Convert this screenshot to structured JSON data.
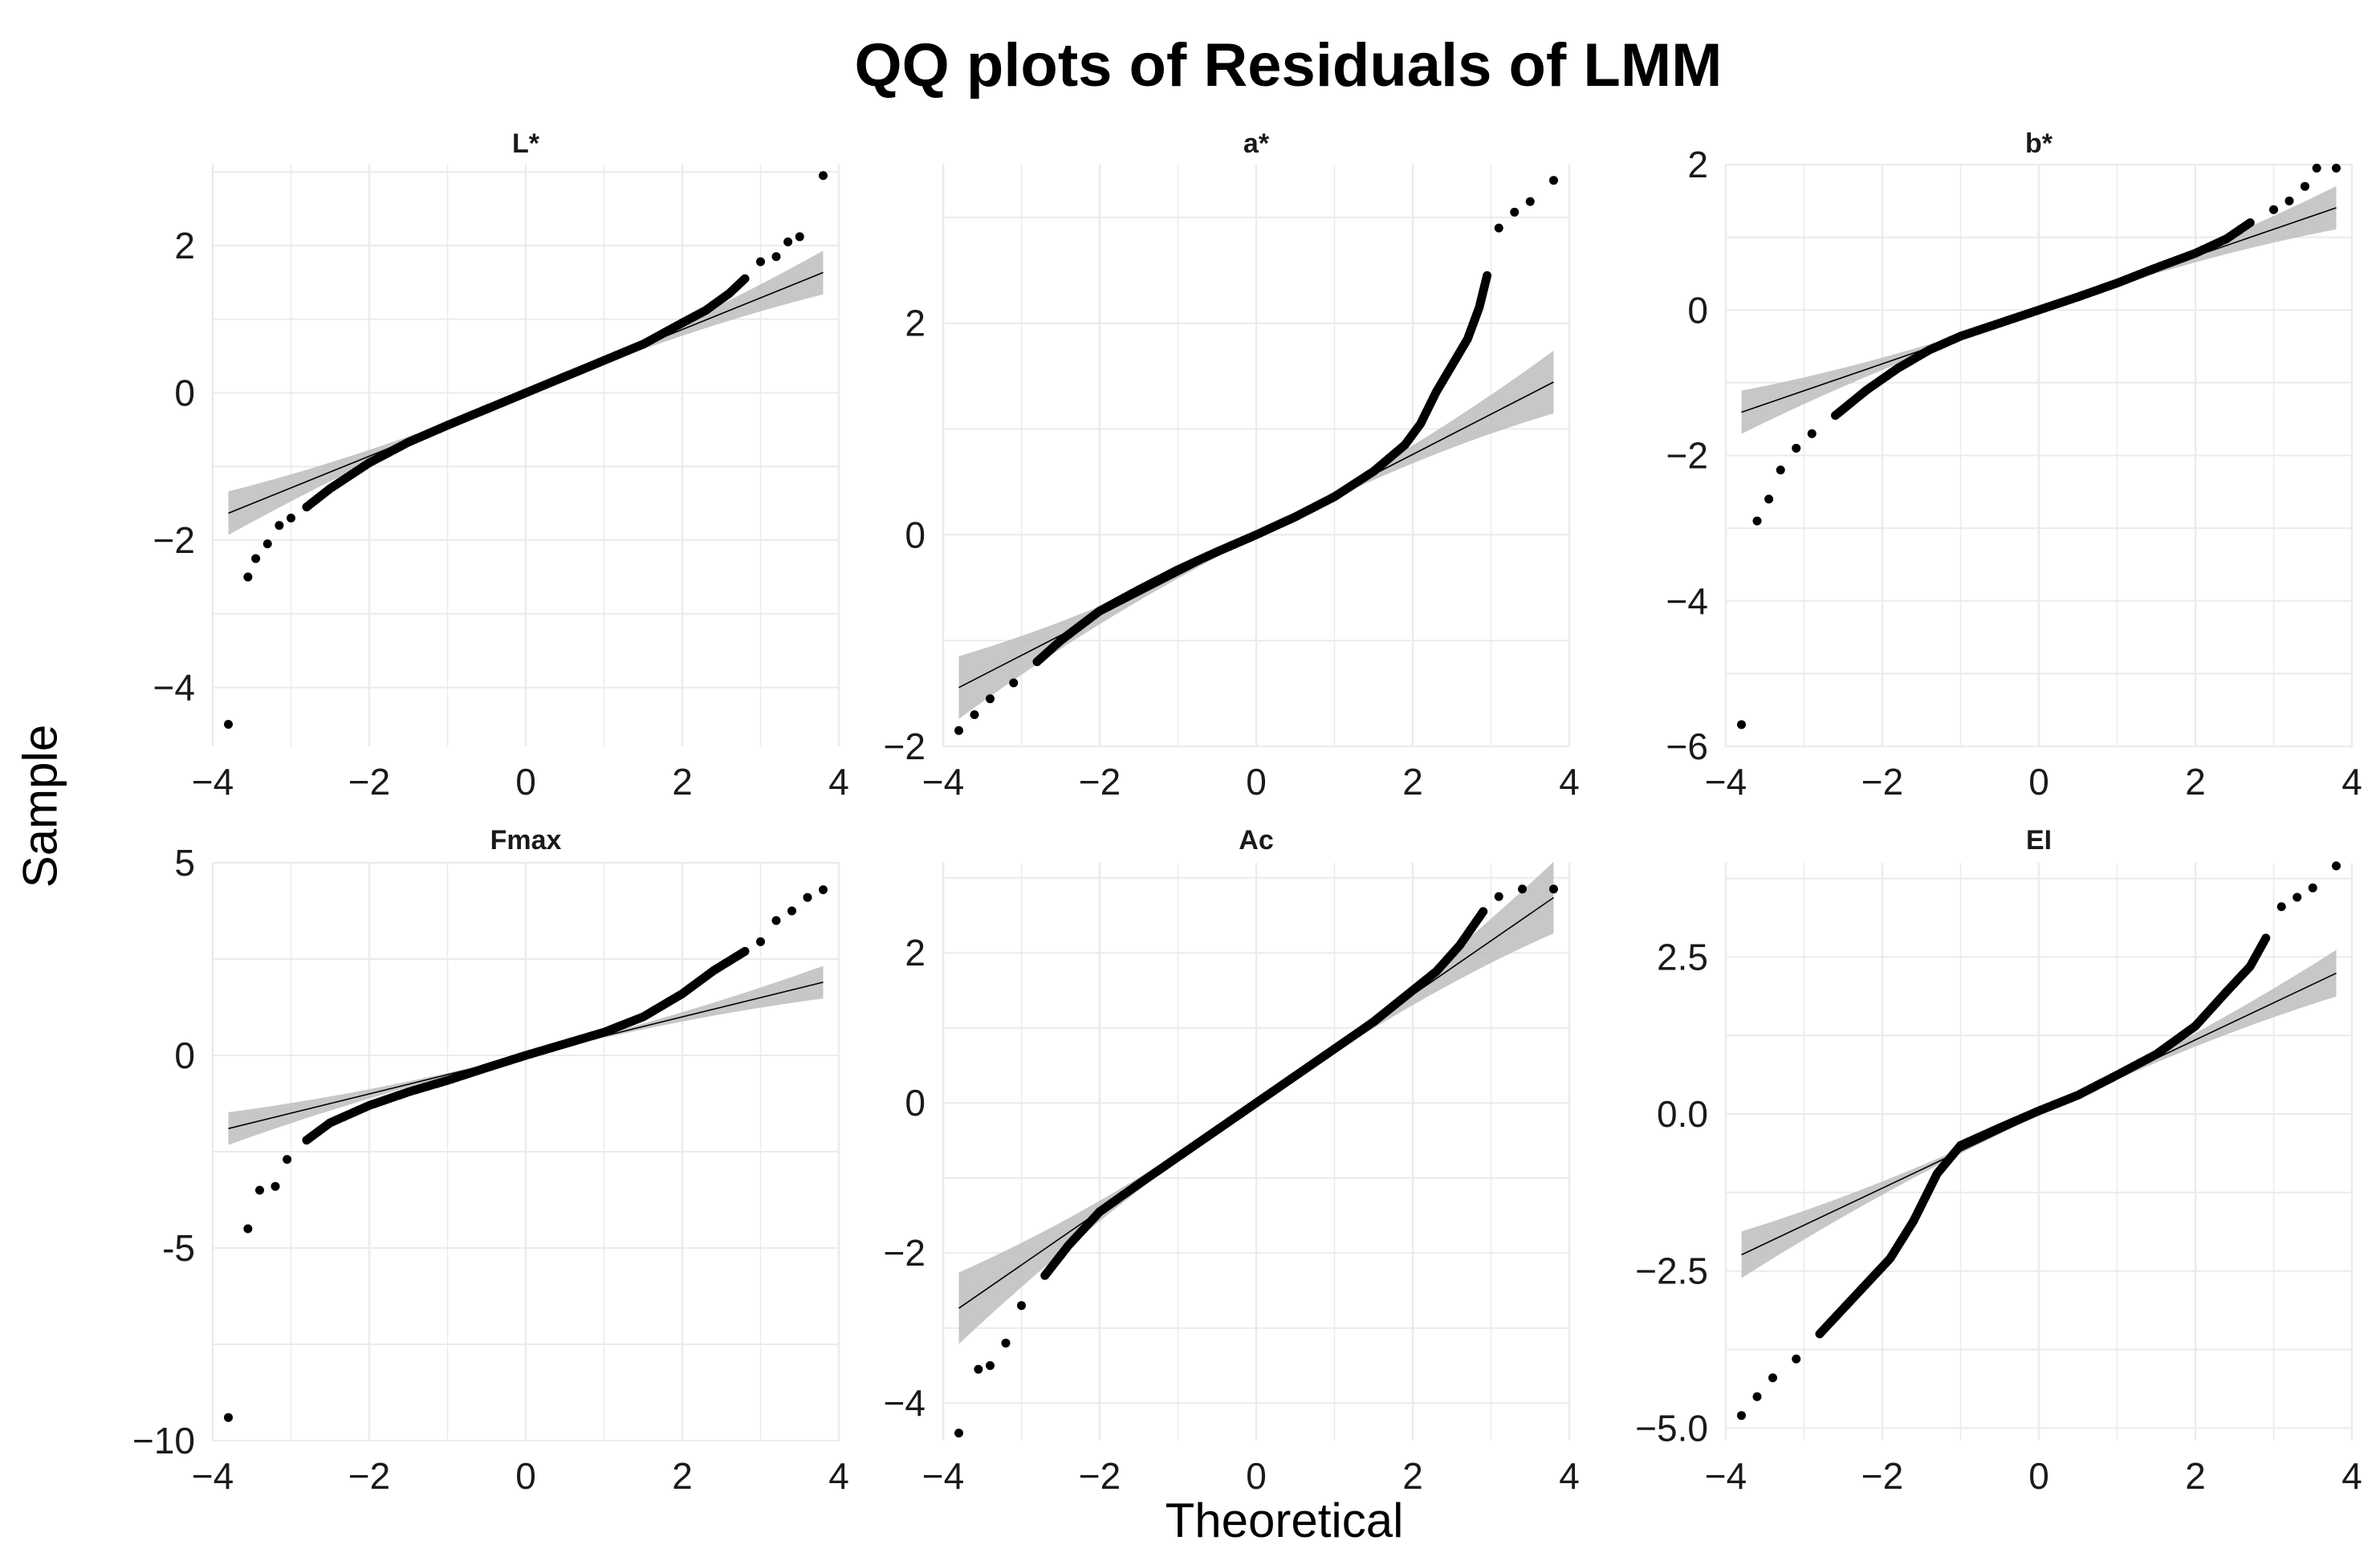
{
  "chart_data": {
    "type": "scatter",
    "title": "QQ plots of Residuals of LMM",
    "xlabel": "Theoretical",
    "ylabel": "Sample",
    "xlim": [
      -4,
      4
    ],
    "x_ticks": [
      -4,
      -2,
      0,
      2,
      4
    ],
    "x_tick_labels": [
      "−4",
      "−2",
      "0",
      "2",
      "4"
    ],
    "grid": true,
    "colors": {
      "points": "#000000",
      "ribbon": "#bdbdbd",
      "line": "#000000",
      "grid": "#ebebeb"
    },
    "panels": [
      {
        "name": "L*",
        "ylim": [
          -4.8,
          3.1
        ],
        "y_ticks": [
          -4,
          -2,
          0,
          2
        ],
        "y_tick_labels": [
          "−4",
          "−2",
          "0",
          "2"
        ],
        "ref_line": {
          "slope": 0.43,
          "intercept": 0.0
        },
        "ribbon_halfwidth_at_tails": 0.28,
        "points": [
          [
            -3.8,
            -4.5
          ],
          [
            -3.55,
            -2.5
          ],
          [
            -3.45,
            -2.25
          ],
          [
            -3.3,
            -2.05
          ],
          [
            -3.15,
            -1.8
          ],
          [
            -3.0,
            -1.7
          ],
          [
            -2.8,
            -1.55
          ],
          [
            -2.5,
            -1.3
          ],
          [
            -2.0,
            -0.95
          ],
          [
            -1.5,
            -0.67
          ],
          [
            -1.0,
            -0.44
          ],
          [
            -0.5,
            -0.22
          ],
          [
            0.0,
            0.0
          ],
          [
            0.5,
            0.22
          ],
          [
            1.0,
            0.44
          ],
          [
            1.5,
            0.66
          ],
          [
            2.0,
            0.95
          ],
          [
            2.3,
            1.12
          ],
          [
            2.6,
            1.35
          ],
          [
            2.8,
            1.55
          ],
          [
            3.0,
            1.78
          ],
          [
            3.2,
            1.85
          ],
          [
            3.35,
            2.05
          ],
          [
            3.5,
            2.12
          ],
          [
            3.8,
            2.95
          ]
        ]
      },
      {
        "name": "a*",
        "ylim": [
          -2.0,
          3.5
        ],
        "y_ticks": [
          -2,
          0,
          2
        ],
        "y_tick_labels": [
          "−2",
          "0",
          "2"
        ],
        "ref_line": {
          "slope": 0.38,
          "intercept": 0.0
        },
        "ribbon_halfwidth_at_tails": 0.28,
        "points": [
          [
            -3.8,
            -1.85
          ],
          [
            -3.6,
            -1.7
          ],
          [
            -3.4,
            -1.55
          ],
          [
            -3.1,
            -1.4
          ],
          [
            -2.8,
            -1.2
          ],
          [
            -2.5,
            -1.0
          ],
          [
            -2.0,
            -0.72
          ],
          [
            -1.5,
            -0.52
          ],
          [
            -1.0,
            -0.33
          ],
          [
            -0.5,
            -0.16
          ],
          [
            0.0,
            0.0
          ],
          [
            0.5,
            0.17
          ],
          [
            1.0,
            0.36
          ],
          [
            1.5,
            0.6
          ],
          [
            1.9,
            0.85
          ],
          [
            2.1,
            1.05
          ],
          [
            2.3,
            1.35
          ],
          [
            2.5,
            1.6
          ],
          [
            2.7,
            1.85
          ],
          [
            2.85,
            2.15
          ],
          [
            2.95,
            2.45
          ],
          [
            3.1,
            2.9
          ],
          [
            3.3,
            3.05
          ],
          [
            3.5,
            3.15
          ],
          [
            3.8,
            3.35
          ]
        ]
      },
      {
        "name": "b*",
        "ylim": [
          -6.0,
          2.0
        ],
        "y_ticks": [
          -6,
          -4,
          -2,
          0,
          2
        ],
        "y_tick_labels": [
          "−6",
          "−4",
          "−2",
          "0",
          "2"
        ],
        "ref_line": {
          "slope": 0.37,
          "intercept": 0.0
        },
        "ribbon_halfwidth_at_tails": 0.28,
        "points": [
          [
            -3.8,
            -5.7
          ],
          [
            -3.6,
            -2.9
          ],
          [
            -3.45,
            -2.6
          ],
          [
            -3.3,
            -2.2
          ],
          [
            -3.1,
            -1.9
          ],
          [
            -2.9,
            -1.7
          ],
          [
            -2.6,
            -1.45
          ],
          [
            -2.2,
            -1.1
          ],
          [
            -1.8,
            -0.8
          ],
          [
            -1.4,
            -0.55
          ],
          [
            -1.0,
            -0.36
          ],
          [
            -0.5,
            -0.18
          ],
          [
            0.0,
            0.0
          ],
          [
            0.5,
            0.18
          ],
          [
            1.0,
            0.37
          ],
          [
            1.5,
            0.58
          ],
          [
            2.0,
            0.78
          ],
          [
            2.4,
            0.98
          ],
          [
            2.7,
            1.2
          ],
          [
            3.0,
            1.38
          ],
          [
            3.2,
            1.5
          ],
          [
            3.4,
            1.7
          ],
          [
            3.55,
            1.95
          ],
          [
            3.8,
            1.95
          ]
        ]
      },
      {
        "name": "Fmax",
        "ylim": [
          -10,
          5
        ],
        "y_ticks": [
          -10,
          -5,
          0,
          5
        ],
        "y_tick_labels": [
          "−10",
          "-5",
          "0",
          "5"
        ],
        "ref_line": {
          "slope": 0.5,
          "intercept": 0.0
        },
        "ribbon_halfwidth_at_tails": 0.4,
        "points": [
          [
            -3.8,
            -9.4
          ],
          [
            -3.55,
            -4.5
          ],
          [
            -3.4,
            -3.5
          ],
          [
            -3.2,
            -3.4
          ],
          [
            -3.05,
            -2.7
          ],
          [
            -2.8,
            -2.2
          ],
          [
            -2.5,
            -1.75
          ],
          [
            -2.0,
            -1.3
          ],
          [
            -1.5,
            -0.95
          ],
          [
            -1.0,
            -0.65
          ],
          [
            -0.5,
            -0.32
          ],
          [
            0.0,
            0.0
          ],
          [
            0.5,
            0.3
          ],
          [
            1.0,
            0.6
          ],
          [
            1.5,
            1.0
          ],
          [
            2.0,
            1.6
          ],
          [
            2.4,
            2.2
          ],
          [
            2.8,
            2.7
          ],
          [
            3.0,
            2.95
          ],
          [
            3.2,
            3.5
          ],
          [
            3.4,
            3.75
          ],
          [
            3.6,
            4.1
          ],
          [
            3.8,
            4.3
          ]
        ]
      },
      {
        "name": "Ac",
        "ylim": [
          -4.5,
          3.2
        ],
        "y_ticks": [
          -4,
          -2,
          0,
          2
        ],
        "y_tick_labels": [
          "−4",
          "−2",
          "0",
          "2"
        ],
        "ref_line": {
          "slope": 0.72,
          "intercept": 0.0
        },
        "ribbon_halfwidth_at_tails": 0.45,
        "points": [
          [
            -3.8,
            -4.4
          ],
          [
            -3.55,
            -3.55
          ],
          [
            -3.4,
            -3.5
          ],
          [
            -3.2,
            -3.2
          ],
          [
            -3.0,
            -2.7
          ],
          [
            -2.7,
            -2.3
          ],
          [
            -2.4,
            -1.9
          ],
          [
            -2.0,
            -1.45
          ],
          [
            -1.5,
            -1.08
          ],
          [
            -1.0,
            -0.72
          ],
          [
            -0.5,
            -0.36
          ],
          [
            0.0,
            0.0
          ],
          [
            0.5,
            0.36
          ],
          [
            1.0,
            0.72
          ],
          [
            1.5,
            1.08
          ],
          [
            2.0,
            1.5
          ],
          [
            2.3,
            1.75
          ],
          [
            2.6,
            2.1
          ],
          [
            2.9,
            2.55
          ],
          [
            3.1,
            2.75
          ],
          [
            3.4,
            2.85
          ],
          [
            3.8,
            2.85
          ]
        ]
      },
      {
        "name": "EI",
        "ylim": [
          -5.2,
          4.0
        ],
        "y_ticks": [
          -5.0,
          -2.5,
          0.0,
          2.5
        ],
        "y_tick_labels": [
          "−5.0",
          "−2.5",
          "0.0",
          "2.5"
        ],
        "ref_line": {
          "slope": 0.59,
          "intercept": 0.0
        },
        "ribbon_halfwidth_at_tails": 0.35,
        "points": [
          [
            -3.8,
            -4.8
          ],
          [
            -3.6,
            -4.5
          ],
          [
            -3.4,
            -4.2
          ],
          [
            -3.1,
            -3.9
          ],
          [
            -2.8,
            -3.5
          ],
          [
            -2.5,
            -3.1
          ],
          [
            -2.2,
            -2.7
          ],
          [
            -1.9,
            -2.3
          ],
          [
            -1.6,
            -1.7
          ],
          [
            -1.3,
            -0.95
          ],
          [
            -1.0,
            -0.5
          ],
          [
            -0.5,
            -0.22
          ],
          [
            0.0,
            0.05
          ],
          [
            0.5,
            0.3
          ],
          [
            1.0,
            0.62
          ],
          [
            1.5,
            0.95
          ],
          [
            2.0,
            1.4
          ],
          [
            2.4,
            1.95
          ],
          [
            2.7,
            2.35
          ],
          [
            2.9,
            2.8
          ],
          [
            3.1,
            3.3
          ],
          [
            3.3,
            3.45
          ],
          [
            3.5,
            3.6
          ],
          [
            3.8,
            3.95
          ]
        ]
      }
    ]
  }
}
